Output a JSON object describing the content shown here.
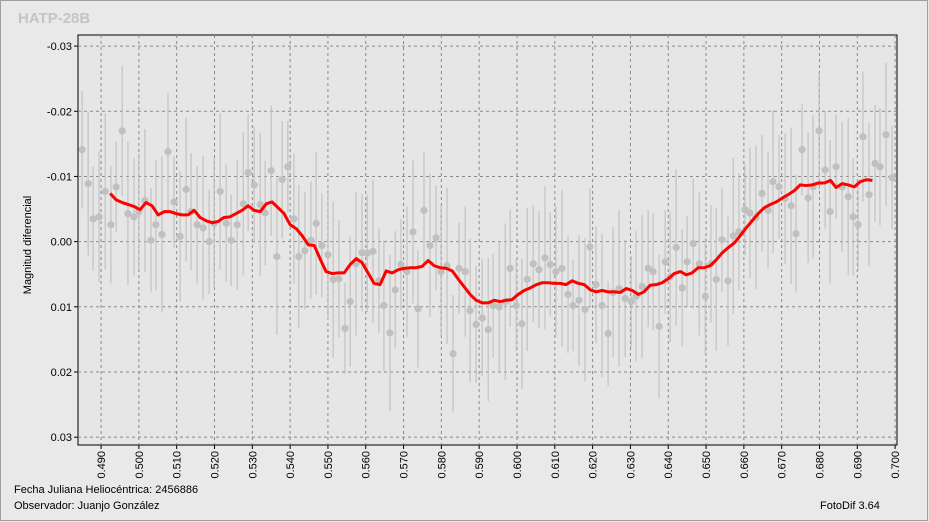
{
  "chart_data": {
    "type": "scatter",
    "title": "HATP-28B",
    "ylabel": "Magnitud diferencial",
    "annotations": [
      "Fecha Juliana Heliocéntrica: 2456886",
      "Observador: Juanjo González",
      "FotoDif 3.64"
    ],
    "xlim": [
      0.4839,
      0.7005
    ],
    "ylim": [
      -0.0317,
      0.0312
    ],
    "invert_y": true,
    "grid": true,
    "xticks": [
      {
        "value": 0.49,
        "label": "0.490"
      },
      {
        "value": 0.5,
        "label": "0.500"
      },
      {
        "value": 0.51,
        "label": "0.510"
      },
      {
        "value": 0.52,
        "label": "0.520"
      },
      {
        "value": 0.53,
        "label": "0.530"
      },
      {
        "value": 0.54,
        "label": "0.540"
      },
      {
        "value": 0.55,
        "label": "0.550"
      },
      {
        "value": 0.56,
        "label": "0.560"
      },
      {
        "value": 0.57,
        "label": "0.570"
      },
      {
        "value": 0.58,
        "label": "0.580"
      },
      {
        "value": 0.59,
        "label": "0.590"
      },
      {
        "value": 0.6,
        "label": "0.600"
      },
      {
        "value": 0.61,
        "label": "0.610"
      },
      {
        "value": 0.62,
        "label": "0.620"
      },
      {
        "value": 0.63,
        "label": "0.630"
      },
      {
        "value": 0.64,
        "label": "0.640"
      },
      {
        "value": 0.65,
        "label": "0.650"
      },
      {
        "value": 0.66,
        "label": "0.660"
      },
      {
        "value": 0.67,
        "label": "0.670"
      },
      {
        "value": 0.68,
        "label": "0.680"
      },
      {
        "value": 0.69,
        "label": "0.690"
      },
      {
        "value": 0.7,
        "label": "0.700"
      }
    ],
    "yticks": [
      -0.03,
      -0.02,
      -0.01,
      {
        "value": 0,
        "label": "0.00"
      },
      0.01,
      0.02,
      0.03
    ],
    "series": [
      {
        "type": "scatter",
        "color": "#c0c0c0",
        "x": [
          0.485,
          0.4866,
          0.4879,
          0.4895,
          0.4911,
          0.4926,
          0.494,
          0.4956,
          0.4971,
          0.4987,
          0.5,
          0.5016,
          0.5032,
          0.5045,
          0.5061,
          0.5077,
          0.5093,
          0.5109,
          0.5125,
          0.5138,
          0.5154,
          0.517,
          0.5186,
          0.5199,
          0.5215,
          0.5231,
          0.5244,
          0.526,
          0.5276,
          0.5289,
          0.5305,
          0.5321,
          0.5334,
          0.535,
          0.5365,
          0.5379,
          0.5394,
          0.541,
          0.5423,
          0.5439,
          0.5455,
          0.5469,
          0.5484,
          0.55,
          0.5514,
          0.5529,
          0.5545,
          0.5559,
          0.5574,
          0.559,
          0.5604,
          0.5619,
          0.5635,
          0.5648,
          0.5664,
          0.5678,
          0.5693,
          0.5709,
          0.5725,
          0.5738,
          0.5754,
          0.577,
          0.5786,
          0.5799,
          0.5815,
          0.5831,
          0.5847,
          0.5863,
          0.5876,
          0.5892,
          0.5908,
          0.5924,
          0.5937,
          0.5953,
          0.5969,
          0.5982,
          0.5998,
          0.6013,
          0.6027,
          0.6043,
          0.6058,
          0.6074,
          0.6088,
          0.6103,
          0.6119,
          0.6135,
          0.6148,
          0.6164,
          0.618,
          0.6193,
          0.6209,
          0.6225,
          0.6241,
          0.6254,
          0.627,
          0.6286,
          0.6302,
          0.6315,
          0.6331,
          0.6347,
          0.636,
          0.6376,
          0.6392,
          0.6405,
          0.6421,
          0.6437,
          0.645,
          0.6466,
          0.6482,
          0.6498,
          0.6513,
          0.6527,
          0.6542,
          0.6558,
          0.6572,
          0.6587,
          0.6603,
          0.6616,
          0.6632,
          0.6648,
          0.6664,
          0.6677,
          0.6693,
          0.6709,
          0.6725,
          0.6738,
          0.6754,
          0.677,
          0.6783,
          0.6799,
          0.6815,
          0.6828,
          0.6844,
          0.686,
          0.6876,
          0.6889,
          0.6902,
          0.6915,
          0.6931,
          0.6947,
          0.696,
          0.6976,
          0.6992
        ],
        "values": [
          -0.0141,
          -0.0089,
          -0.0035,
          -0.0038,
          -0.0077,
          -0.0026,
          -0.0084,
          -0.017,
          -0.0043,
          -0.0038,
          -0.0046,
          -0.0063,
          -0.0002,
          -0.0026,
          -0.0011,
          -0.0138,
          -0.0061,
          -0.0008,
          -0.008,
          -0.0046,
          -0.0026,
          -0.0021,
          0,
          -0.0028,
          -0.0077,
          -0.0028,
          -0.0002,
          -0.0026,
          -0.0058,
          -0.0106,
          -0.0087,
          -0.0057,
          -0.0044,
          -0.0109,
          0.0023,
          -0.0095,
          -0.0115,
          -0.0035,
          0.0023,
          0.0014,
          -0.0002,
          -0.0028,
          0.0006,
          0.002,
          0.0058,
          0.0057,
          0.0133,
          0.0092,
          0.0034,
          0.0017,
          0.0018,
          0.0015,
          0.006,
          0.0098,
          0.014,
          0.0074,
          0.0035,
          0.0046,
          -0.0015,
          0.0103,
          -0.0048,
          0.0006,
          -0.0006,
          0.0046,
          0.0037,
          0.0172,
          0.0041,
          0.0046,
          0.0106,
          0.0127,
          0.0117,
          0.0135,
          0.0098,
          0.01,
          0.0092,
          0.0041,
          0.0098,
          0.0126,
          0.0058,
          0.0034,
          0.0043,
          0.0025,
          0.0035,
          0.0046,
          0.0041,
          0.0081,
          0.0098,
          0.009,
          0.0104,
          0.0008,
          0.0066,
          0.0098,
          0.0141,
          0.0078,
          0.0072,
          0.0087,
          0.0092,
          0.0084,
          0.0069,
          0.0041,
          0.0046,
          0.013,
          0.0031,
          0.0054,
          0.0009,
          0.0071,
          0.0031,
          0.0003,
          0.0034,
          0.0084,
          0.0034,
          0.0058,
          -0.0003,
          0.006,
          -0.0009,
          -0.0015,
          -0.0049,
          -0.0044,
          -0.0037,
          -0.0074,
          -0.0048,
          -0.0092,
          -0.0084,
          -0.0066,
          -0.0055,
          -0.0012,
          -0.0141,
          -0.0067,
          -0.0084,
          -0.017,
          -0.011,
          -0.0046,
          -0.0115,
          -0.0084,
          -0.0069,
          -0.0038,
          -0.0026,
          -0.0161,
          -0.0072,
          -0.012,
          -0.0115,
          -0.0164,
          -0.0098
        ],
        "errors": [
          0.009,
          0.011,
          0.008,
          0.01,
          0.012,
          0.009,
          0.007,
          0.01,
          0.011,
          0.009,
          0.009,
          0.011,
          0.008,
          0.01,
          0.012,
          0.009,
          0.007,
          0.01,
          0.011,
          0.009,
          0.009,
          0.011,
          0.008,
          0.01,
          0.012,
          0.009,
          0.007,
          0.01,
          0.011,
          0.009,
          0.009,
          0.011,
          0.008,
          0.01,
          0.012,
          0.009,
          0.007,
          0.01,
          0.011,
          0.009,
          0.009,
          0.011,
          0.008,
          0.01,
          0.012,
          0.009,
          0.007,
          0.01,
          0.011,
          0.009,
          0.009,
          0.011,
          0.008,
          0.01,
          0.012,
          0.009,
          0.007,
          0.01,
          0.011,
          0.009,
          0.009,
          0.011,
          0.008,
          0.01,
          0.012,
          0.009,
          0.007,
          0.01,
          0.011,
          0.009,
          0.009,
          0.011,
          0.008,
          0.01,
          0.012,
          0.009,
          0.007,
          0.01,
          0.011,
          0.009,
          0.009,
          0.011,
          0.008,
          0.01,
          0.012,
          0.009,
          0.007,
          0.01,
          0.011,
          0.009,
          0.009,
          0.011,
          0.008,
          0.01,
          0.012,
          0.009,
          0.007,
          0.01,
          0.011,
          0.009,
          0.009,
          0.011,
          0.008,
          0.01,
          0.012,
          0.009,
          0.007,
          0.01,
          0.011,
          0.009,
          0.009,
          0.011,
          0.008,
          0.01,
          0.012,
          0.009,
          0.007,
          0.01,
          0.011,
          0.009,
          0.009,
          0.011,
          0.008,
          0.01,
          0.012,
          0.009,
          0.007,
          0.01,
          0.011,
          0.009,
          0.009,
          0.011,
          0.008,
          0.01,
          0.012,
          0.009,
          0.007,
          0.01,
          0.011,
          0.009,
          0.009,
          0.011,
          0.008
        ]
      },
      {
        "type": "line",
        "color": "#ff0000",
        "x": [
          0.4924,
          0.494,
          0.4956,
          0.4971,
          0.4987,
          0.5003,
          0.5019,
          0.5035,
          0.5051,
          0.5067,
          0.5083,
          0.5098,
          0.5114,
          0.513,
          0.5146,
          0.5162,
          0.5178,
          0.5194,
          0.521,
          0.5225,
          0.5241,
          0.5257,
          0.5273,
          0.5289,
          0.5305,
          0.5321,
          0.5337,
          0.5352,
          0.5368,
          0.5384,
          0.54,
          0.5416,
          0.5432,
          0.5448,
          0.5464,
          0.5479,
          0.5495,
          0.5511,
          0.5527,
          0.5543,
          0.5559,
          0.5575,
          0.559,
          0.5606,
          0.5622,
          0.5638,
          0.5654,
          0.567,
          0.5686,
          0.5702,
          0.5717,
          0.5733,
          0.5749,
          0.5765,
          0.5781,
          0.5797,
          0.5813,
          0.5829,
          0.5844,
          0.586,
          0.5876,
          0.5892,
          0.5908,
          0.5924,
          0.594,
          0.5956,
          0.5971,
          0.5987,
          0.6003,
          0.6019,
          0.6035,
          0.6051,
          0.6067,
          0.6082,
          0.6098,
          0.6114,
          0.613,
          0.6146,
          0.6162,
          0.6178,
          0.6194,
          0.6209,
          0.6225,
          0.6241,
          0.6257,
          0.6273,
          0.6289,
          0.6305,
          0.6321,
          0.6336,
          0.6352,
          0.6368,
          0.6384,
          0.64,
          0.6416,
          0.6432,
          0.6448,
          0.6463,
          0.6479,
          0.6495,
          0.6511,
          0.6527,
          0.6543,
          0.6559,
          0.6575,
          0.659,
          0.6606,
          0.6622,
          0.6638,
          0.6654,
          0.667,
          0.6686,
          0.6702,
          0.6717,
          0.6733,
          0.6749,
          0.6765,
          0.6781,
          0.6797,
          0.6813,
          0.6829,
          0.6844,
          0.686,
          0.6876,
          0.6892,
          0.6908,
          0.6924,
          0.694
        ],
        "values": [
          -0.0074,
          -0.0064,
          -0.006,
          -0.0057,
          -0.0054,
          -0.0049,
          -0.006,
          -0.0055,
          -0.0041,
          -0.0046,
          -0.0046,
          -0.0043,
          -0.0041,
          -0.0041,
          -0.0048,
          -0.0037,
          -0.0032,
          -0.0029,
          -0.0031,
          -0.0037,
          -0.0038,
          -0.0043,
          -0.0048,
          -0.0055,
          -0.0048,
          -0.0046,
          -0.0058,
          -0.0061,
          -0.0052,
          -0.0043,
          -0.0026,
          -0.002,
          -0.0009,
          0.0005,
          0.0006,
          0.0026,
          0.0046,
          0.0049,
          0.0048,
          0.0048,
          0.0035,
          0.0026,
          0.0032,
          0.0048,
          0.0064,
          0.0066,
          0.0045,
          0.0048,
          0.0043,
          0.0041,
          0.004,
          0.004,
          0.0038,
          0.0029,
          0.0037,
          0.004,
          0.0041,
          0.0045,
          0.0057,
          0.0069,
          0.0081,
          0.009,
          0.0094,
          0.0094,
          0.009,
          0.0092,
          0.009,
          0.0089,
          0.0081,
          0.0075,
          0.0071,
          0.0066,
          0.0063,
          0.0063,
          0.0064,
          0.0064,
          0.0066,
          0.006,
          0.0064,
          0.0066,
          0.0074,
          0.0077,
          0.0075,
          0.0077,
          0.0077,
          0.0078,
          0.0072,
          0.0075,
          0.0081,
          0.0077,
          0.0067,
          0.0066,
          0.0063,
          0.0057,
          0.0049,
          0.0046,
          0.0051,
          0.0048,
          0.004,
          0.004,
          0.0037,
          0.0028,
          0.0017,
          0.0009,
          0.0002,
          -0.0009,
          -0.0021,
          -0.0032,
          -0.0043,
          -0.0052,
          -0.0057,
          -0.0061,
          -0.0067,
          -0.0072,
          -0.0078,
          -0.0087,
          -0.0086,
          -0.0087,
          -0.009,
          -0.009,
          -0.0094,
          -0.0083,
          -0.0089,
          -0.0087,
          -0.0084,
          -0.0092,
          -0.0095,
          -0.0094
        ]
      }
    ]
  }
}
